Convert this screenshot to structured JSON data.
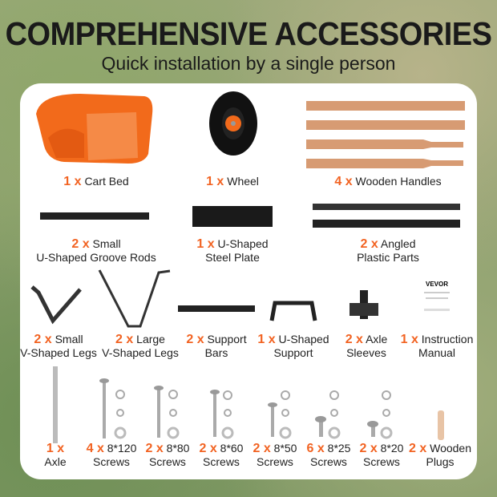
{
  "header": {
    "title": "COMPREHENSIVE ACCESSORIES",
    "subtitle": "Quick installation by a single person"
  },
  "colors": {
    "accent": "#f26322",
    "cart_bed": "#f26a1b",
    "wood": "#d79b73"
  },
  "manual_logo": "VEVOR",
  "items": [
    {
      "qty": "1 x",
      "line1": "Cart Bed",
      "line2": ""
    },
    {
      "qty": "1 x",
      "line1": "Wheel",
      "line2": ""
    },
    {
      "qty": "4 x",
      "line1": "Wooden Handles",
      "line2": ""
    },
    {
      "qty": "2 x",
      "line1": "Small",
      "line2": "U-Shaped Groove Rods"
    },
    {
      "qty": "1 x",
      "line1": "U-Shaped",
      "line2": "Steel Plate"
    },
    {
      "qty": "2 x",
      "line1": "Angled",
      "line2": "Plastic Parts"
    },
    {
      "qty": "2 x",
      "line1": "Small",
      "line2": "V-Shaped Legs"
    },
    {
      "qty": "2 x",
      "line1": "Large",
      "line2": "V-Shaped Legs"
    },
    {
      "qty": "2 x",
      "line1": "Support",
      "line2": "Bars"
    },
    {
      "qty": "1 x",
      "line1": "U-Shaped",
      "line2": "Support"
    },
    {
      "qty": "2 x",
      "line1": "Axle",
      "line2": "Sleeves"
    },
    {
      "qty": "1 x",
      "line1": "Instruction",
      "line2": "Manual"
    },
    {
      "qty": "1 x",
      "line1": "",
      "line2": "Axle"
    },
    {
      "qty": "4 x",
      "line1": "8*120",
      "line2": "Screws"
    },
    {
      "qty": "2 x",
      "line1": "8*80",
      "line2": "Screws"
    },
    {
      "qty": "2 x",
      "line1": "8*60",
      "line2": "Screws"
    },
    {
      "qty": "2 x",
      "line1": "8*50",
      "line2": "Screws"
    },
    {
      "qty": "6 x",
      "line1": "8*25",
      "line2": "Screws"
    },
    {
      "qty": "2 x",
      "line1": "8*20",
      "line2": "Screws"
    },
    {
      "qty": "2 x",
      "line1": "Wooden",
      "line2": "Plugs"
    }
  ]
}
